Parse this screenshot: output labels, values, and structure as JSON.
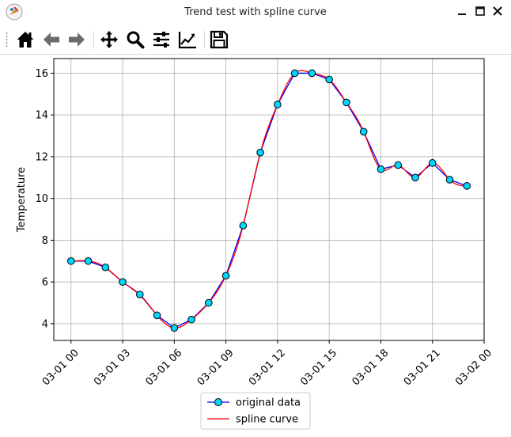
{
  "window": {
    "title": "Trend test with spline curve"
  },
  "toolbar": {
    "buttons": [
      {
        "name": "home-icon"
      },
      {
        "name": "back-icon"
      },
      {
        "name": "forward-icon"
      },
      {
        "name": "pan-icon"
      },
      {
        "name": "zoom-icon"
      },
      {
        "name": "configure-subplots-icon"
      },
      {
        "name": "edit-axis-icon"
      },
      {
        "name": "save-icon"
      }
    ]
  },
  "chart_data": {
    "type": "line",
    "title": "",
    "xlabel": "",
    "ylabel": "Temperature",
    "x_unit": "hours since 03-01 00:00 (axis shows dates)",
    "xlim": [
      -1,
      24
    ],
    "ylim": [
      3.2,
      16.7
    ],
    "grid": true,
    "legend_position": "below chart",
    "x_ticks": [
      {
        "value": 0,
        "label": "03-01 00"
      },
      {
        "value": 3,
        "label": "03-01 03"
      },
      {
        "value": 6,
        "label": "03-01 06"
      },
      {
        "value": 9,
        "label": "03-01 09"
      },
      {
        "value": 12,
        "label": "03-01 12"
      },
      {
        "value": 15,
        "label": "03-01 15"
      },
      {
        "value": 18,
        "label": "03-01 18"
      },
      {
        "value": 21,
        "label": "03-01 21"
      },
      {
        "value": 24,
        "label": "03-02 00"
      }
    ],
    "y_ticks": [
      4,
      6,
      8,
      10,
      12,
      14,
      16
    ],
    "series": [
      {
        "name": "original data",
        "color": "#0000ff",
        "marker_color": "#00d5ff",
        "x": [
          0,
          1,
          2,
          3,
          4,
          5,
          6,
          7,
          8,
          9,
          10,
          11,
          12,
          13,
          14,
          15,
          16,
          17,
          18,
          19,
          20,
          21,
          22,
          23
        ],
        "y": [
          7.0,
          7.0,
          6.7,
          6.0,
          5.4,
          4.4,
          3.8,
          4.2,
          5.0,
          6.3,
          8.7,
          12.2,
          14.5,
          16.0,
          16.0,
          15.7,
          14.6,
          13.2,
          11.4,
          11.6,
          11.0,
          11.7,
          10.9,
          10.6
        ]
      },
      {
        "name": "spline curve",
        "color": "#ff0000"
      }
    ]
  }
}
